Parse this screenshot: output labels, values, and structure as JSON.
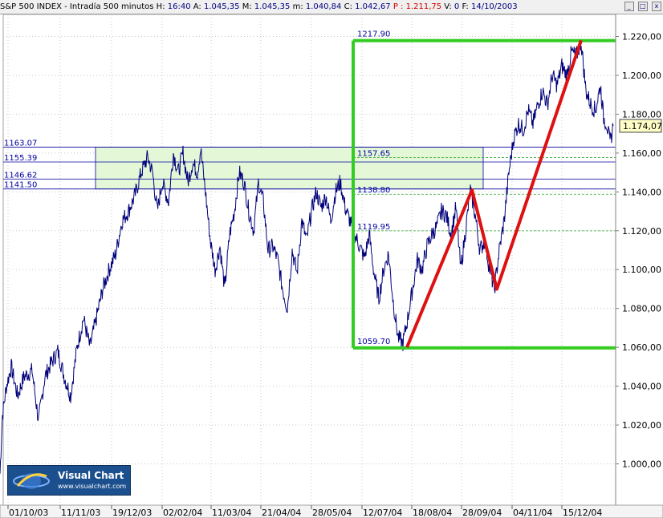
{
  "window": {
    "title": "S&P 500 INDEX - Intradía 500 minutos",
    "stats": [
      {
        "label": "H:",
        "value": "16:40"
      },
      {
        "label": "A:",
        "value": "1.045,35"
      },
      {
        "label": "M:",
        "value": "1.045,35"
      },
      {
        "label": "m:",
        "value": "1.040,84"
      },
      {
        "label": "C:",
        "value": "1.042,67"
      },
      {
        "label": "P :",
        "value": "1.211,75",
        "color": "#d00000"
      },
      {
        "label": "V:",
        "value": "0"
      },
      {
        "label": "F:",
        "value": "14/10/2003"
      }
    ],
    "buttons": [
      "_",
      "□",
      "x"
    ]
  },
  "logo": {
    "title": "Visual Chart",
    "url": "www.visualchart.com"
  },
  "colors": {
    "price": "#00007a",
    "green": "#33cc22",
    "red": "#dd1111",
    "blue": "#0000a0",
    "zone": "#e4f8d8",
    "dashed": "#33aa33",
    "grid": "#c8c8c8"
  },
  "chart_data": {
    "type": "line",
    "title": "S&P 500 INDEX",
    "xlabel": "",
    "ylabel": "",
    "ylim": [
      990,
      1230
    ],
    "grid": true,
    "y_ticks": [
      1000,
      1020,
      1040,
      1060,
      1080,
      1100,
      1120,
      1140,
      1160,
      1180,
      1200,
      1220
    ],
    "y_tick_labels": [
      "1.000,00",
      "1.020,00",
      "1.040,00",
      "1.060,00",
      "1.080,00",
      "1.100,00",
      "1.120,00",
      "1.140,00",
      "1.160,00",
      "1.180,00",
      "1.200,00",
      "1.220,00"
    ],
    "x_tick_labels": [
      "01/10/03",
      "11/11/03",
      "19/12/03",
      "02/02/04",
      "11/03/04",
      "21/04/04",
      "28/05/04",
      "12/07/04",
      "18/08/04",
      "28/09/04",
      "04/11/04",
      "15/12/04"
    ],
    "last_value_label": "1.174,07",
    "series": [
      {
        "price_path": [
          [
            0,
            995
          ],
          [
            3,
            1025
          ],
          [
            8,
            1040
          ],
          [
            14,
            1050
          ],
          [
            22,
            1035
          ],
          [
            30,
            1045
          ],
          [
            40,
            1048
          ],
          [
            48,
            1022
          ],
          [
            56,
            1045
          ],
          [
            64,
            1052
          ],
          [
            72,
            1058
          ],
          [
            80,
            1045
          ],
          [
            88,
            1035
          ],
          [
            96,
            1060
          ],
          [
            104,
            1075
          ],
          [
            112,
            1060
          ],
          [
            120,
            1075
          ],
          [
            128,
            1090
          ],
          [
            136,
            1100
          ],
          [
            144,
            1108
          ],
          [
            152,
            1125
          ],
          [
            160,
            1130
          ],
          [
            168,
            1138
          ],
          [
            176,
            1150
          ],
          [
            184,
            1158
          ],
          [
            190,
            1150
          ],
          [
            196,
            1130
          ],
          [
            202,
            1145
          ],
          [
            210,
            1135
          ],
          [
            216,
            1160
          ],
          [
            222,
            1150
          ],
          [
            228,
            1160
          ],
          [
            234,
            1145
          ],
          [
            240,
            1155
          ],
          [
            246,
            1150
          ],
          [
            250,
            1162
          ],
          [
            256,
            1140
          ],
          [
            262,
            1115
          ],
          [
            268,
            1100
          ],
          [
            274,
            1112
          ],
          [
            280,
            1090
          ],
          [
            286,
            1118
          ],
          [
            292,
            1130
          ],
          [
            298,
            1150
          ],
          [
            304,
            1145
          ],
          [
            310,
            1130
          ],
          [
            316,
            1120
          ],
          [
            322,
            1145
          ],
          [
            328,
            1135
          ],
          [
            334,
            1110
          ],
          [
            340,
            1112
          ],
          [
            346,
            1105
          ],
          [
            352,
            1090
          ],
          [
            358,
            1080
          ],
          [
            364,
            1110
          ],
          [
            370,
            1098
          ],
          [
            376,
            1125
          ],
          [
            382,
            1115
          ],
          [
            388,
            1130
          ],
          [
            394,
            1140
          ],
          [
            400,
            1132
          ],
          [
            406,
            1138
          ],
          [
            412,
            1125
          ],
          [
            418,
            1140
          ],
          [
            424,
            1145
          ],
          [
            430,
            1132
          ],
          [
            436,
            1125
          ],
          [
            442,
            1118
          ],
          [
            448,
            1112
          ],
          [
            454,
            1106
          ],
          [
            460,
            1118
          ],
          [
            466,
            1098
          ],
          [
            472,
            1085
          ],
          [
            478,
            1100
          ],
          [
            484,
            1108
          ],
          [
            490,
            1083
          ],
          [
            496,
            1065
          ],
          [
            502,
            1062
          ],
          [
            508,
            1075
          ],
          [
            514,
            1090
          ],
          [
            520,
            1105
          ],
          [
            526,
            1100
          ],
          [
            532,
            1112
          ],
          [
            538,
            1118
          ],
          [
            544,
            1122
          ],
          [
            550,
            1130
          ],
          [
            556,
            1128
          ],
          [
            562,
            1118
          ],
          [
            568,
            1132
          ],
          [
            574,
            1100
          ],
          [
            580,
            1120
          ],
          [
            586,
            1141
          ],
          [
            592,
            1128
          ],
          [
            598,
            1110
          ],
          [
            604,
            1115
          ],
          [
            610,
            1100
          ],
          [
            616,
            1090
          ],
          [
            622,
            1110
          ],
          [
            628,
            1125
          ],
          [
            634,
            1150
          ],
          [
            640,
            1168
          ],
          [
            646,
            1175
          ],
          [
            652,
            1172
          ],
          [
            658,
            1182
          ],
          [
            664,
            1175
          ],
          [
            670,
            1185
          ],
          [
            676,
            1192
          ],
          [
            682,
            1185
          ],
          [
            688,
            1200
          ],
          [
            694,
            1195
          ],
          [
            700,
            1205
          ],
          [
            706,
            1200
          ],
          [
            712,
            1212
          ],
          [
            718,
            1210
          ],
          [
            724,
            1217
          ],
          [
            730,
            1192
          ],
          [
            736,
            1185
          ],
          [
            742,
            1182
          ],
          [
            748,
            1195
          ],
          [
            752,
            1178
          ],
          [
            756,
            1175
          ],
          [
            760,
            1165
          ],
          [
            764,
            1174
          ]
        ]
      }
    ],
    "overlays": {
      "green_box": {
        "x_start": 440,
        "x_end": 767,
        "y_top": 1217.9,
        "y_bottom": 1059.7,
        "top_label": "1217.90",
        "bottom_label": "1059.70"
      },
      "red_zigzag": [
        [
          507,
          1060
        ],
        [
          588,
          1141
        ],
        [
          619,
          1090
        ],
        [
          724,
          1218
        ]
      ],
      "fib_levels": [
        {
          "value": 1157.65,
          "label": "1157.65"
        },
        {
          "value": 1138.8,
          "label": "1138.80"
        },
        {
          "value": 1119.95,
          "label": "1119.95"
        }
      ],
      "blue_levels": [
        {
          "value": 1163.07,
          "label": "1163.07"
        },
        {
          "value": 1155.39,
          "label": "1155.39"
        },
        {
          "value": 1146.62,
          "label": "1146.62"
        },
        {
          "value": 1141.5,
          "label": "1141.50"
        }
      ],
      "zone": {
        "x_start": 119,
        "x_end": 602,
        "y_top": 1163.07,
        "y_bottom": 1141.5
      }
    }
  }
}
